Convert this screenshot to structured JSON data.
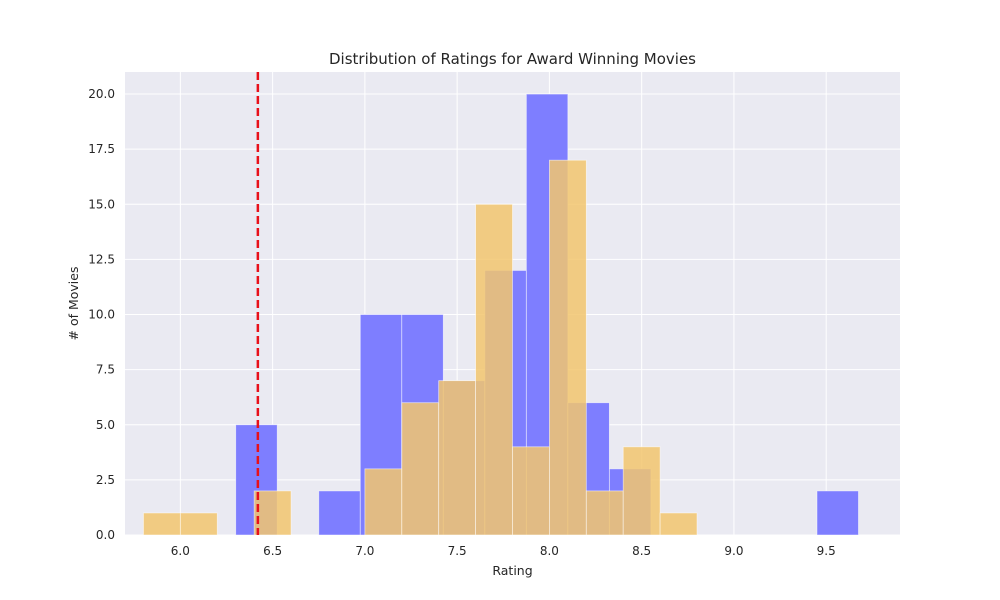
{
  "chart_data": {
    "type": "bar",
    "title": "Distribution of Ratings for Award Winning Movies",
    "xlabel": "Rating",
    "ylabel": "# of Movies",
    "xlim": [
      5.7,
      9.9
    ],
    "ylim": [
      0,
      21
    ],
    "x_ticks": [
      6.0,
      6.5,
      7.0,
      7.5,
      8.0,
      8.5,
      9.0,
      9.5
    ],
    "x_tick_labels": [
      "6.0",
      "6.5",
      "7.0",
      "7.5",
      "8.0",
      "8.5",
      "9.0",
      "9.5"
    ],
    "y_ticks": [
      0,
      2.5,
      5,
      7.5,
      10,
      12.5,
      15,
      17.5,
      20
    ],
    "y_tick_labels": [
      "0.0",
      "2.5",
      "5.0",
      "7.5",
      "10.0",
      "12.5",
      "15.0",
      "17.5",
      "20.0"
    ],
    "grid": true,
    "background": "#eaeaf2",
    "series": [
      {
        "color": "#7b7bff",
        "bins": [
          {
            "x0": 6.3,
            "x1": 6.525,
            "count": 5
          },
          {
            "x0": 6.75,
            "x1": 6.975,
            "count": 2
          },
          {
            "x0": 6.975,
            "x1": 7.2,
            "count": 10
          },
          {
            "x0": 7.2,
            "x1": 7.425,
            "count": 10
          },
          {
            "x0": 7.425,
            "x1": 7.65,
            "count": 7
          },
          {
            "x0": 7.65,
            "x1": 7.875,
            "count": 12
          },
          {
            "x0": 7.875,
            "x1": 8.1,
            "count": 20
          },
          {
            "x0": 8.1,
            "x1": 8.325,
            "count": 6
          },
          {
            "x0": 8.325,
            "x1": 8.55,
            "count": 3
          },
          {
            "x0": 9.45,
            "x1": 9.675,
            "count": 2
          }
        ]
      },
      {
        "color": "#f2c66f",
        "bins": [
          {
            "x0": 5.8,
            "x1": 6.0,
            "count": 1
          },
          {
            "x0": 6.0,
            "x1": 6.2,
            "count": 1
          },
          {
            "x0": 6.4,
            "x1": 6.6,
            "count": 2
          },
          {
            "x0": 7.0,
            "x1": 7.2,
            "count": 3
          },
          {
            "x0": 7.2,
            "x1": 7.4,
            "count": 6
          },
          {
            "x0": 7.4,
            "x1": 7.6,
            "count": 7
          },
          {
            "x0": 7.6,
            "x1": 7.8,
            "count": 15
          },
          {
            "x0": 7.8,
            "x1": 8.0,
            "count": 4
          },
          {
            "x0": 8.0,
            "x1": 8.2,
            "count": 17
          },
          {
            "x0": 8.2,
            "x1": 8.4,
            "count": 2
          },
          {
            "x0": 8.4,
            "x1": 8.6,
            "count": 4
          },
          {
            "x0": 8.6,
            "x1": 8.8,
            "count": 1
          }
        ]
      }
    ],
    "reference_line": {
      "x": 6.42,
      "color": "#e8101a",
      "style": "dashed"
    }
  }
}
